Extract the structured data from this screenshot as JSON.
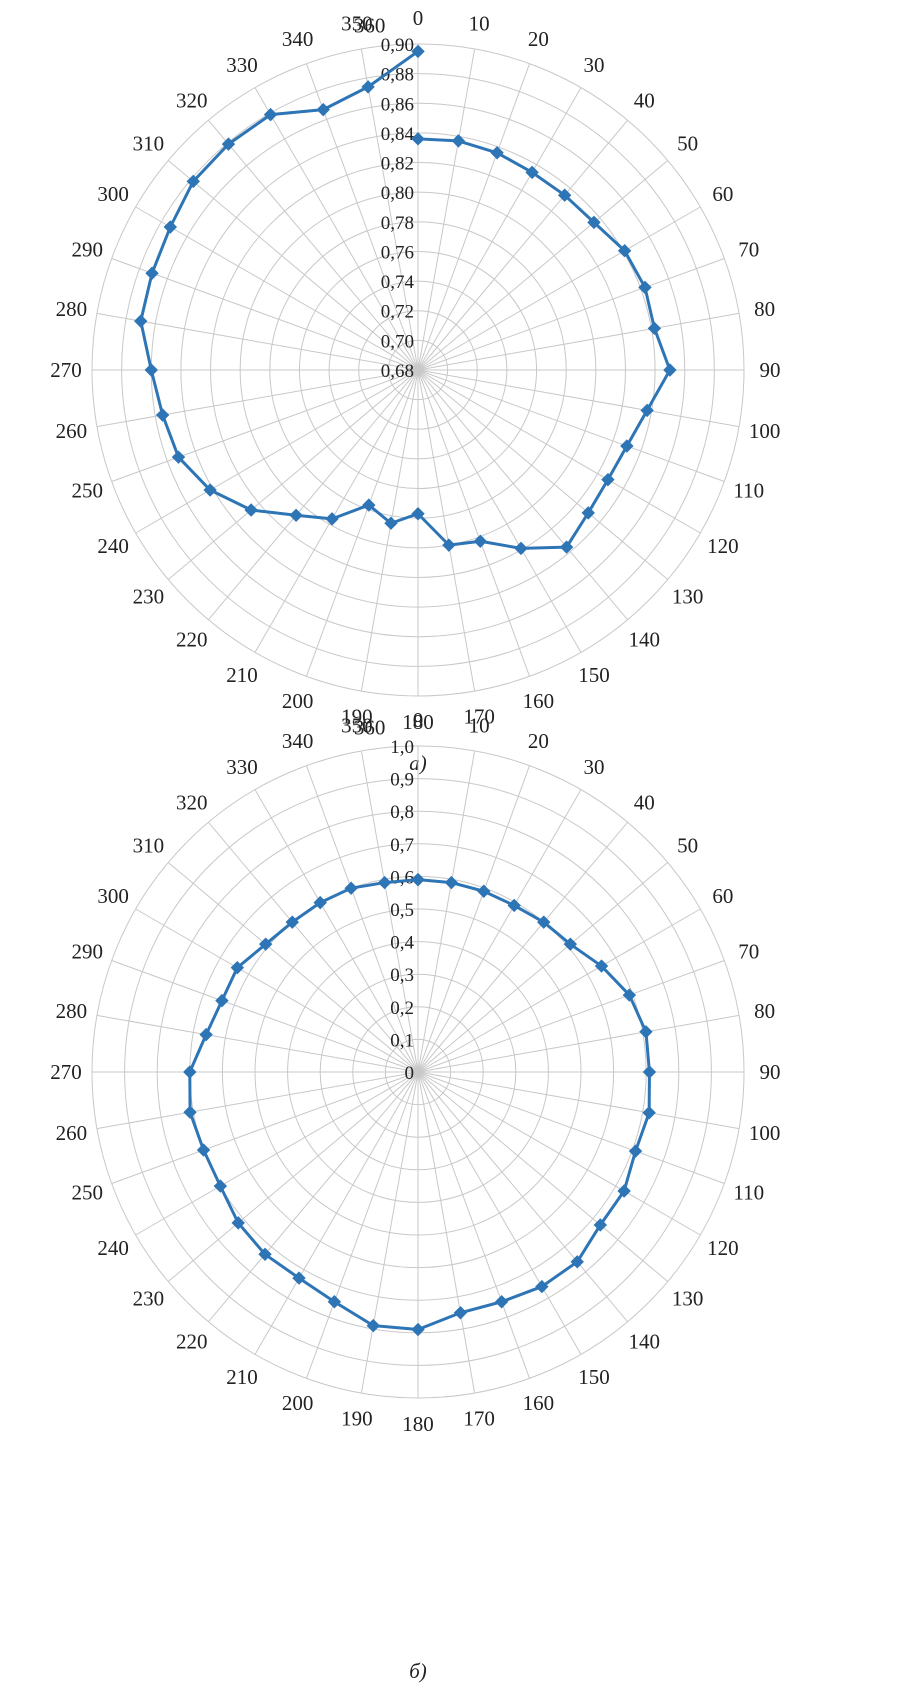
{
  "colors": {
    "series": "#2E75B6",
    "grid": "#c8c8c8",
    "text": "#222222",
    "background": "#ffffff"
  },
  "chart_data": [
    {
      "type": "radar",
      "caption": "а)",
      "angle_labels": [
        "0",
        "10",
        "20",
        "30",
        "40",
        "50",
        "60",
        "70",
        "80",
        "90",
        "100",
        "110",
        "120",
        "130",
        "140",
        "150",
        "160",
        "170",
        "180",
        "190",
        "200",
        "210",
        "220",
        "230",
        "240",
        "250",
        "260",
        "270",
        "280",
        "290",
        "300",
        "310",
        "320",
        "330",
        "340",
        "350",
        "360"
      ],
      "angle_unit": "degrees",
      "radial_range": [
        0.68,
        0.9
      ],
      "radial_ticks": [
        "0,68",
        "0,70",
        "0,72",
        "0,74",
        "0,76",
        "0,78",
        "0,80",
        "0,82",
        "0,84",
        "0,86",
        "0,88",
        "0,90"
      ],
      "grid": true,
      "legend": "none",
      "series": [
        {
          "angles": [
            0,
            10,
            20,
            30,
            40,
            50,
            60,
            70,
            80,
            90,
            100,
            110,
            120,
            130,
            140,
            150,
            160,
            170,
            180,
            190,
            200,
            210,
            220,
            230,
            240,
            250,
            260,
            270,
            280,
            290,
            300,
            310,
            320,
            330,
            340,
            350,
            360
          ],
          "values": [
            0.836,
            0.837,
            0.836,
            0.834,
            0.834,
            0.835,
            0.841,
            0.843,
            0.842,
            0.85,
            0.837,
            0.83,
            0.828,
            0.83,
            0.836,
            0.819,
            0.803,
            0.8,
            0.777,
            0.785,
            0.777,
            0.796,
            0.808,
            0.827,
            0.842,
            0.852,
            0.855,
            0.86,
            0.87,
            0.871,
            0.873,
            0.878,
            0.879,
            0.879,
            0.867,
            0.874,
            0.895
          ]
        }
      ]
    },
    {
      "type": "radar",
      "caption": "б)",
      "angle_labels": [
        "0",
        "10",
        "20",
        "30",
        "40",
        "50",
        "60",
        "70",
        "80",
        "90",
        "100",
        "110",
        "120",
        "130",
        "140",
        "150",
        "160",
        "170",
        "180",
        "190",
        "200",
        "210",
        "220",
        "230",
        "240",
        "250",
        "260",
        "270",
        "280",
        "290",
        "300",
        "310",
        "320",
        "330",
        "340",
        "350",
        "360"
      ],
      "angle_unit": "degrees",
      "radial_range": [
        0,
        1.0
      ],
      "radial_ticks": [
        "0",
        "0,1",
        "0,2",
        "0,3",
        "0,4",
        "0,5",
        "0,6",
        "0,7",
        "0,8",
        "0,9",
        "1,0"
      ],
      "grid": true,
      "legend": "none",
      "series": [
        {
          "angles": [
            0,
            10,
            20,
            30,
            40,
            50,
            60,
            70,
            80,
            90,
            100,
            110,
            120,
            130,
            140,
            150,
            160,
            170,
            180,
            190,
            200,
            210,
            220,
            230,
            240,
            250,
            260,
            270,
            280,
            290,
            300,
            310,
            320,
            330,
            340,
            350,
            360
          ],
          "values": [
            0.59,
            0.59,
            0.59,
            0.59,
            0.6,
            0.61,
            0.65,
            0.69,
            0.71,
            0.71,
            0.72,
            0.71,
            0.73,
            0.73,
            0.76,
            0.76,
            0.75,
            0.75,
            0.79,
            0.79,
            0.75,
            0.73,
            0.73,
            0.72,
            0.7,
            0.7,
            0.71,
            0.7,
            0.66,
            0.64,
            0.64,
            0.61,
            0.6,
            0.6,
            0.6,
            0.59,
            0.59
          ]
        }
      ]
    }
  ]
}
